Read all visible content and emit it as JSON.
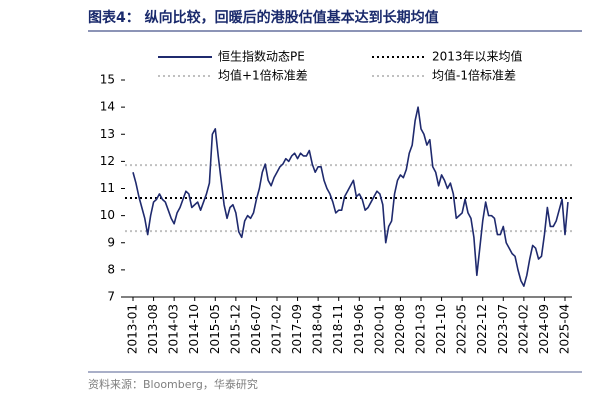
{
  "chart_data": {
    "type": "line",
    "title": "图表4：  纵向比较，回暖后的港股估值基本达到长期均值",
    "source": "资料来源：Bloomberg，华泰研究",
    "x": [
      "2013-01",
      "2013-02",
      "2013-03",
      "2013-04",
      "2013-05",
      "2013-06",
      "2013-07",
      "2013-08",
      "2013-09",
      "2013-10",
      "2013-11",
      "2013-12",
      "2014-01",
      "2014-02",
      "2014-03",
      "2014-04",
      "2014-05",
      "2014-06",
      "2014-07",
      "2014-08",
      "2014-09",
      "2014-10",
      "2014-11",
      "2014-12",
      "2015-01",
      "2015-02",
      "2015-03",
      "2015-04",
      "2015-05",
      "2015-06",
      "2015-07",
      "2015-08",
      "2015-09",
      "2015-10",
      "2015-11",
      "2015-12",
      "2016-01",
      "2016-02",
      "2016-03",
      "2016-04",
      "2016-05",
      "2016-06",
      "2016-07",
      "2016-08",
      "2016-09",
      "2016-10",
      "2016-11",
      "2016-12",
      "2017-01",
      "2017-02",
      "2017-03",
      "2017-04",
      "2017-05",
      "2017-06",
      "2017-07",
      "2017-08",
      "2017-09",
      "2017-10",
      "2017-11",
      "2017-12",
      "2018-01",
      "2018-02",
      "2018-03",
      "2018-04",
      "2018-05",
      "2018-06",
      "2018-07",
      "2018-08",
      "2018-09",
      "2018-10",
      "2018-11",
      "2018-12",
      "2019-01",
      "2019-02",
      "2019-03",
      "2019-04",
      "2019-05",
      "2019-06",
      "2019-07",
      "2019-08",
      "2019-09",
      "2019-10",
      "2019-11",
      "2019-12",
      "2020-01",
      "2020-02",
      "2020-03",
      "2020-04",
      "2020-05",
      "2020-06",
      "2020-07",
      "2020-08",
      "2020-09",
      "2020-10",
      "2020-11",
      "2020-12",
      "2021-01",
      "2021-02",
      "2021-03",
      "2021-04",
      "2021-05",
      "2021-06",
      "2021-07",
      "2021-08",
      "2021-09",
      "2021-10",
      "2021-11",
      "2021-12",
      "2022-01",
      "2022-02",
      "2022-03",
      "2022-04",
      "2022-05",
      "2022-06",
      "2022-07",
      "2022-08",
      "2022-09",
      "2022-10",
      "2022-11",
      "2022-12",
      "2023-01",
      "2023-02",
      "2023-03",
      "2023-04",
      "2023-05",
      "2023-06",
      "2023-07",
      "2023-08",
      "2023-09",
      "2023-10",
      "2023-11",
      "2023-12",
      "2024-01",
      "2024-02",
      "2024-03",
      "2024-04",
      "2024-05",
      "2024-06",
      "2024-07",
      "2024-08",
      "2024-09",
      "2024-10",
      "2024-11",
      "2024-12",
      "2025-01",
      "2025-02",
      "2025-03",
      "2025-04",
      "2025-05"
    ],
    "series": [
      {
        "name": "恒生指数动态PE",
        "color": "#1f2a6e",
        "values": [
          11.6,
          11.2,
          10.7,
          10.3,
          9.9,
          9.3,
          10.0,
          10.5,
          10.6,
          10.8,
          10.6,
          10.5,
          10.2,
          9.9,
          9.7,
          10.1,
          10.3,
          10.6,
          10.9,
          10.8,
          10.3,
          10.4,
          10.5,
          10.2,
          10.5,
          10.8,
          11.2,
          13.0,
          13.2,
          12.2,
          11.3,
          10.4,
          9.9,
          10.3,
          10.4,
          10.1,
          9.4,
          9.2,
          9.8,
          10.0,
          9.9,
          10.1,
          10.6,
          11.0,
          11.6,
          11.9,
          11.3,
          11.1,
          11.4,
          11.6,
          11.8,
          11.9,
          12.1,
          12.0,
          12.2,
          12.3,
          12.1,
          12.3,
          12.2,
          12.2,
          12.4,
          11.9,
          11.6,
          11.8,
          11.8,
          11.3,
          11.0,
          10.8,
          10.5,
          10.1,
          10.2,
          10.2,
          10.7,
          10.9,
          11.1,
          11.3,
          10.7,
          10.8,
          10.6,
          10.2,
          10.3,
          10.5,
          10.7,
          10.9,
          10.8,
          10.4,
          9.0,
          9.6,
          9.8,
          10.8,
          11.3,
          11.5,
          11.4,
          11.7,
          12.3,
          12.6,
          13.5,
          14.0,
          13.2,
          13.0,
          12.6,
          12.8,
          11.8,
          11.6,
          11.1,
          11.5,
          11.3,
          11.0,
          11.2,
          10.8,
          9.9,
          10.0,
          10.1,
          10.6,
          10.1,
          9.9,
          9.2,
          7.8,
          8.8,
          9.8,
          10.5,
          10.0,
          10.0,
          9.9,
          9.3,
          9.3,
          9.6,
          9.0,
          8.8,
          8.6,
          8.5,
          8.0,
          7.6,
          7.4,
          7.8,
          8.4,
          8.9,
          8.8,
          8.4,
          8.5,
          9.3,
          10.3,
          9.6,
          9.6,
          9.8,
          10.2,
          10.6,
          9.3,
          10.5
        ]
      }
    ],
    "reference_lines": [
      {
        "name": "2013年以来均值",
        "value": 10.65,
        "color": "#000000"
      },
      {
        "name": "均值+1倍标准差",
        "value": 11.86,
        "color": "#c0c0c0"
      },
      {
        "name": "均值-1倍标准差",
        "value": 9.43,
        "color": "#c0c0c0"
      }
    ],
    "xticks": [
      "2013-01",
      "2013-08",
      "2014-03",
      "2014-10",
      "2015-05",
      "2015-12",
      "2016-07",
      "2017-02",
      "2017-09",
      "2018-04",
      "2018-11",
      "2019-06",
      "2020-01",
      "2020-08",
      "2021-03",
      "2021-10",
      "2022-05",
      "2022-12",
      "2023-07",
      "2024-02",
      "2024-09",
      "2025-04"
    ],
    "ylim": [
      7,
      15
    ],
    "yticks": [
      7,
      8,
      9,
      10,
      11,
      12,
      13,
      14,
      15
    ]
  }
}
